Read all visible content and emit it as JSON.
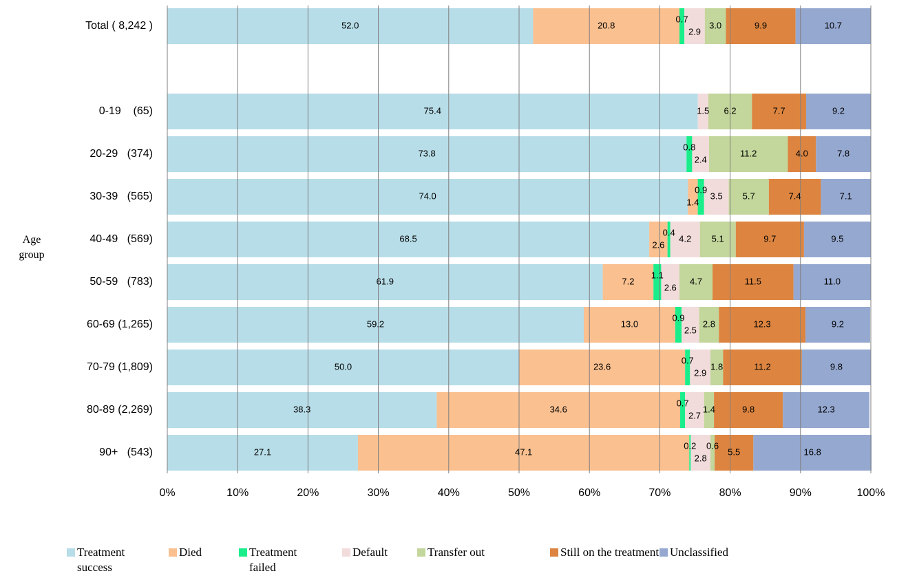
{
  "chart_data": {
    "type": "stacked-bar-horizontal",
    "y_label": "Age group",
    "categories": [
      "Total ( 8,242 )",
      null,
      "0-19    (65)",
      "20-29   (374)",
      "30-39   (565)",
      "40-49   (569)",
      "50-59   (783)",
      "60-69 (1,265)",
      "70-79 (1,809)",
      "80-89 (2,269)",
      "90+   (543)"
    ],
    "xlim": [
      0,
      100
    ],
    "xticks": [
      {
        "value": 0,
        "label": "0%"
      },
      {
        "value": 10,
        "label": "10%"
      },
      {
        "value": 20,
        "label": "20%"
      },
      {
        "value": 30,
        "label": "30%"
      },
      {
        "value": 40,
        "label": "40%"
      },
      {
        "value": 50,
        "label": "50%"
      },
      {
        "value": 60,
        "label": "60%"
      },
      {
        "value": 70,
        "label": "70%"
      },
      {
        "value": 80,
        "label": "80%"
      },
      {
        "value": 90,
        "label": "90%"
      },
      {
        "value": 100,
        "label": "100%"
      }
    ],
    "grid": true,
    "series": [
      {
        "name": "Treatment success",
        "color": "#b7dde8",
        "values": [
          52.0,
          null,
          75.4,
          73.8,
          74.0,
          68.5,
          61.9,
          59.2,
          50.0,
          38.3,
          27.1
        ],
        "value_labels": [
          "52.0",
          null,
          "75.4",
          "73.8",
          "74.0",
          "68.5",
          "61.9",
          "59.2",
          "50.0",
          "38.3",
          "27.1"
        ]
      },
      {
        "name": "Died",
        "color": "#fac090",
        "values": [
          20.8,
          null,
          0,
          0,
          1.4,
          2.6,
          7.2,
          13.0,
          23.6,
          34.6,
          47.1
        ],
        "value_labels": [
          "20.8",
          null,
          null,
          null,
          "1.4",
          "2.6",
          "7.2",
          "13.0",
          "23.6",
          "34.6",
          "47.1"
        ]
      },
      {
        "name": "Treatment failed",
        "color": "#19ee8a",
        "values": [
          0.7,
          null,
          0,
          0.8,
          0.9,
          0.4,
          1.1,
          0.9,
          0.7,
          0.7,
          0.2
        ],
        "value_labels": [
          "0.7",
          null,
          null,
          "0.8",
          "0.9",
          "0.4",
          "1.1",
          "0.9",
          "0.7",
          "0.7",
          "0.2"
        ]
      },
      {
        "name": "Default",
        "color": "#f2dcdb",
        "values": [
          2.9,
          null,
          1.5,
          2.4,
          3.5,
          4.2,
          2.6,
          2.5,
          2.9,
          2.7,
          2.8
        ],
        "value_labels": [
          "2.9",
          null,
          "1.5",
          "2.4",
          "3.5",
          "4.2",
          "2.6",
          "2.5",
          "2.9",
          "2.7",
          "2.8"
        ]
      },
      {
        "name": "Transfer out",
        "color": "#c3d69b",
        "values": [
          3.0,
          null,
          6.2,
          11.2,
          5.7,
          5.1,
          4.7,
          2.8,
          1.8,
          1.4,
          0.6
        ],
        "value_labels": [
          "3.0",
          null,
          "6.2",
          "11.2",
          "5.7",
          "5.1",
          "4.7",
          "2.8",
          "1.8",
          "1.4",
          "0.6"
        ]
      },
      {
        "name": "Still on the treatment",
        "color": "#dd8540",
        "values": [
          9.9,
          null,
          7.7,
          4.0,
          7.4,
          9.7,
          11.5,
          12.3,
          11.2,
          9.8,
          5.5
        ],
        "value_labels": [
          "9.9",
          null,
          "7.7",
          "4.0",
          "7.4",
          "9.7",
          "11.5",
          "12.3",
          "11.2",
          "9.8",
          "5.5"
        ]
      },
      {
        "name": "Unclassified",
        "color": "#95a8d0",
        "values": [
          10.7,
          null,
          9.2,
          7.8,
          7.1,
          9.5,
          11.0,
          9.2,
          9.8,
          12.3,
          16.8
        ],
        "value_labels": [
          "10.7",
          null,
          "9.2",
          "7.8",
          "7.1",
          "9.5",
          "11.0",
          "9.2",
          "9.8",
          "12.3",
          "16.8"
        ]
      }
    ]
  }
}
